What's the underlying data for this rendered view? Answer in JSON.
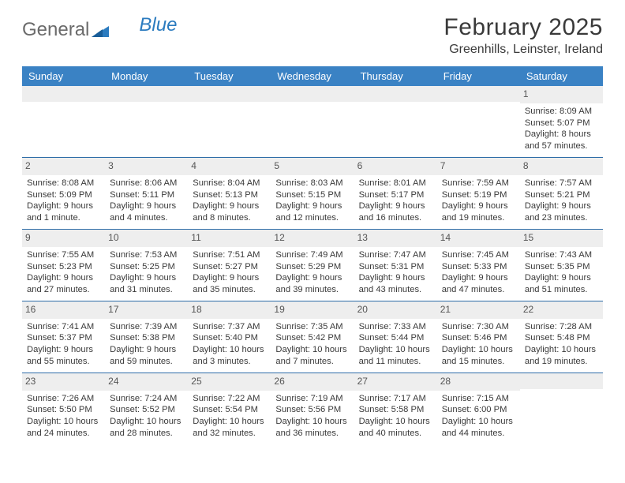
{
  "brand": {
    "word1": "General",
    "word2": "Blue"
  },
  "title": {
    "month": "February 2025",
    "location": "Greenhills, Leinster, Ireland"
  },
  "colors": {
    "header_bg": "#3a82c4",
    "header_text": "#ffffff",
    "rule": "#2f6da8",
    "daynum_bg": "#eeeeee",
    "text": "#3a3a3a",
    "logo_gray": "#6b6b6b",
    "logo_blue": "#2b7bbf"
  },
  "daysOfWeek": [
    "Sunday",
    "Monday",
    "Tuesday",
    "Wednesday",
    "Thursday",
    "Friday",
    "Saturday"
  ],
  "weeks": [
    [
      null,
      null,
      null,
      null,
      null,
      null,
      {
        "n": "1",
        "a": "Sunrise: 8:09 AM",
        "b": "Sunset: 5:07 PM",
        "c": "Daylight: 8 hours",
        "d": "and 57 minutes."
      }
    ],
    [
      {
        "n": "2",
        "a": "Sunrise: 8:08 AM",
        "b": "Sunset: 5:09 PM",
        "c": "Daylight: 9 hours",
        "d": "and 1 minute."
      },
      {
        "n": "3",
        "a": "Sunrise: 8:06 AM",
        "b": "Sunset: 5:11 PM",
        "c": "Daylight: 9 hours",
        "d": "and 4 minutes."
      },
      {
        "n": "4",
        "a": "Sunrise: 8:04 AM",
        "b": "Sunset: 5:13 PM",
        "c": "Daylight: 9 hours",
        "d": "and 8 minutes."
      },
      {
        "n": "5",
        "a": "Sunrise: 8:03 AM",
        "b": "Sunset: 5:15 PM",
        "c": "Daylight: 9 hours",
        "d": "and 12 minutes."
      },
      {
        "n": "6",
        "a": "Sunrise: 8:01 AM",
        "b": "Sunset: 5:17 PM",
        "c": "Daylight: 9 hours",
        "d": "and 16 minutes."
      },
      {
        "n": "7",
        "a": "Sunrise: 7:59 AM",
        "b": "Sunset: 5:19 PM",
        "c": "Daylight: 9 hours",
        "d": "and 19 minutes."
      },
      {
        "n": "8",
        "a": "Sunrise: 7:57 AM",
        "b": "Sunset: 5:21 PM",
        "c": "Daylight: 9 hours",
        "d": "and 23 minutes."
      }
    ],
    [
      {
        "n": "9",
        "a": "Sunrise: 7:55 AM",
        "b": "Sunset: 5:23 PM",
        "c": "Daylight: 9 hours",
        "d": "and 27 minutes."
      },
      {
        "n": "10",
        "a": "Sunrise: 7:53 AM",
        "b": "Sunset: 5:25 PM",
        "c": "Daylight: 9 hours",
        "d": "and 31 minutes."
      },
      {
        "n": "11",
        "a": "Sunrise: 7:51 AM",
        "b": "Sunset: 5:27 PM",
        "c": "Daylight: 9 hours",
        "d": "and 35 minutes."
      },
      {
        "n": "12",
        "a": "Sunrise: 7:49 AM",
        "b": "Sunset: 5:29 PM",
        "c": "Daylight: 9 hours",
        "d": "and 39 minutes."
      },
      {
        "n": "13",
        "a": "Sunrise: 7:47 AM",
        "b": "Sunset: 5:31 PM",
        "c": "Daylight: 9 hours",
        "d": "and 43 minutes."
      },
      {
        "n": "14",
        "a": "Sunrise: 7:45 AM",
        "b": "Sunset: 5:33 PM",
        "c": "Daylight: 9 hours",
        "d": "and 47 minutes."
      },
      {
        "n": "15",
        "a": "Sunrise: 7:43 AM",
        "b": "Sunset: 5:35 PM",
        "c": "Daylight: 9 hours",
        "d": "and 51 minutes."
      }
    ],
    [
      {
        "n": "16",
        "a": "Sunrise: 7:41 AM",
        "b": "Sunset: 5:37 PM",
        "c": "Daylight: 9 hours",
        "d": "and 55 minutes."
      },
      {
        "n": "17",
        "a": "Sunrise: 7:39 AM",
        "b": "Sunset: 5:38 PM",
        "c": "Daylight: 9 hours",
        "d": "and 59 minutes."
      },
      {
        "n": "18",
        "a": "Sunrise: 7:37 AM",
        "b": "Sunset: 5:40 PM",
        "c": "Daylight: 10 hours",
        "d": "and 3 minutes."
      },
      {
        "n": "19",
        "a": "Sunrise: 7:35 AM",
        "b": "Sunset: 5:42 PM",
        "c": "Daylight: 10 hours",
        "d": "and 7 minutes."
      },
      {
        "n": "20",
        "a": "Sunrise: 7:33 AM",
        "b": "Sunset: 5:44 PM",
        "c": "Daylight: 10 hours",
        "d": "and 11 minutes."
      },
      {
        "n": "21",
        "a": "Sunrise: 7:30 AM",
        "b": "Sunset: 5:46 PM",
        "c": "Daylight: 10 hours",
        "d": "and 15 minutes."
      },
      {
        "n": "22",
        "a": "Sunrise: 7:28 AM",
        "b": "Sunset: 5:48 PM",
        "c": "Daylight: 10 hours",
        "d": "and 19 minutes."
      }
    ],
    [
      {
        "n": "23",
        "a": "Sunrise: 7:26 AM",
        "b": "Sunset: 5:50 PM",
        "c": "Daylight: 10 hours",
        "d": "and 24 minutes."
      },
      {
        "n": "24",
        "a": "Sunrise: 7:24 AM",
        "b": "Sunset: 5:52 PM",
        "c": "Daylight: 10 hours",
        "d": "and 28 minutes."
      },
      {
        "n": "25",
        "a": "Sunrise: 7:22 AM",
        "b": "Sunset: 5:54 PM",
        "c": "Daylight: 10 hours",
        "d": "and 32 minutes."
      },
      {
        "n": "26",
        "a": "Sunrise: 7:19 AM",
        "b": "Sunset: 5:56 PM",
        "c": "Daylight: 10 hours",
        "d": "and 36 minutes."
      },
      {
        "n": "27",
        "a": "Sunrise: 7:17 AM",
        "b": "Sunset: 5:58 PM",
        "c": "Daylight: 10 hours",
        "d": "and 40 minutes."
      },
      {
        "n": "28",
        "a": "Sunrise: 7:15 AM",
        "b": "Sunset: 6:00 PM",
        "c": "Daylight: 10 hours",
        "d": "and 44 minutes."
      },
      null
    ]
  ]
}
